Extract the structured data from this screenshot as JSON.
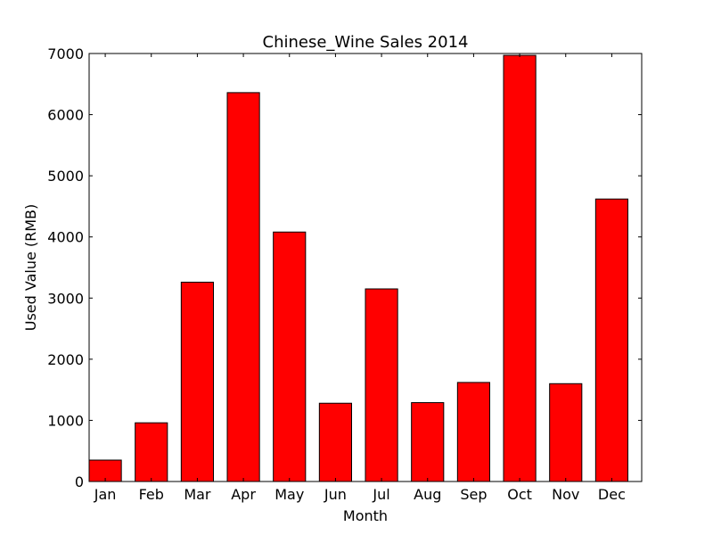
{
  "chart_data": {
    "type": "bar",
    "title": "Chinese_Wine Sales 2014",
    "xlabel": "Month",
    "ylabel": "Used Value (RMB)",
    "categories": [
      "Jan",
      "Feb",
      "Mar",
      "Apr",
      "May",
      "Jun",
      "Jul",
      "Aug",
      "Sep",
      "Oct",
      "Nov",
      "Dec"
    ],
    "values": [
      350,
      960,
      3260,
      6360,
      4080,
      1280,
      3150,
      1290,
      1620,
      6970,
      1600,
      4620
    ],
    "ylim": [
      0,
      7000
    ],
    "yticks": [
      "0",
      "1000",
      "2000",
      "3000",
      "4000",
      "5000",
      "6000",
      "7000"
    ],
    "bar_color": "#ff0000",
    "edge_color": "#000000",
    "grid": false,
    "legend": "none"
  }
}
